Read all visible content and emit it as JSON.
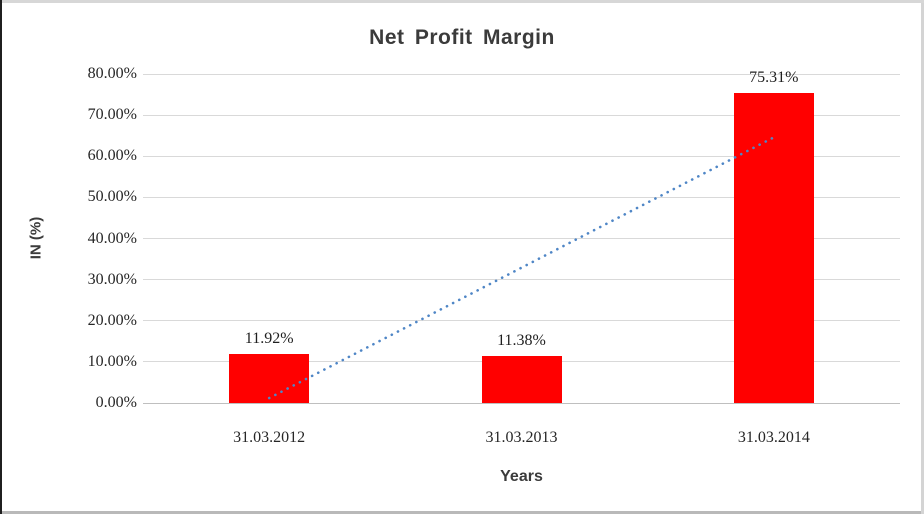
{
  "chart_data": {
    "type": "bar",
    "title": "Net Profit Margin",
    "xlabel": "Years",
    "ylabel": "IN (%)",
    "categories": [
      "31.03.2012",
      "31.03.2013",
      "31.03.2014"
    ],
    "values": [
      11.92,
      11.38,
      75.31
    ],
    "data_labels": [
      "11.92%",
      "11.38%",
      "75.31%"
    ],
    "ylim": [
      0,
      80
    ],
    "ytick_step": 10,
    "ytick_labels": [
      "0.00%",
      "10.00%",
      "20.00%",
      "30.00%",
      "40.00%",
      "50.00%",
      "60.00%",
      "70.00%",
      "80.00%"
    ],
    "grid": true,
    "legend": "none",
    "colors": {
      "bar": "#FF0000",
      "trendline": "#4F86C6",
      "gridline": "#D9D9D9",
      "axis_line": "#BFBFBF"
    },
    "trendline": {
      "type": "linear",
      "style": "dotted",
      "start_value": 1.2,
      "end_value": 64.6
    }
  }
}
